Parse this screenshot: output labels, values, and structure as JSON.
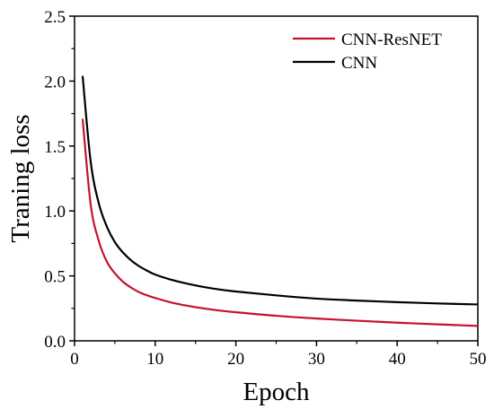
{
  "chart_data": {
    "type": "line",
    "title": "",
    "xlabel": "Epoch",
    "ylabel": "Traning loss",
    "xlim": [
      0,
      50
    ],
    "ylim": [
      0,
      2.5
    ],
    "xticks": [
      0,
      10,
      20,
      30,
      40,
      50
    ],
    "yticks": [
      0.0,
      0.5,
      1.0,
      1.5,
      2.0,
      2.5
    ],
    "xtick_labels": [
      "0",
      "10",
      "20",
      "30",
      "40",
      "50"
    ],
    "ytick_labels": [
      "0.0",
      "0.5",
      "1.0",
      "1.5",
      "2.0",
      "2.5"
    ],
    "grid": false,
    "legend_position": "top-right",
    "series": [
      {
        "name": "CNN-ResNET",
        "color": "#c8102e",
        "x": [
          1,
          2,
          3,
          4,
          5,
          6,
          7,
          8,
          9,
          10,
          12,
          14,
          16,
          18,
          20,
          25,
          30,
          35,
          40,
          45,
          50
        ],
        "y": [
          1.71,
          1.05,
          0.77,
          0.61,
          0.52,
          0.455,
          0.41,
          0.375,
          0.35,
          0.33,
          0.295,
          0.27,
          0.25,
          0.233,
          0.22,
          0.193,
          0.172,
          0.155,
          0.14,
          0.127,
          0.115
        ]
      },
      {
        "name": "CNN",
        "color": "#000000",
        "x": [
          1,
          2,
          3,
          4,
          5,
          6,
          7,
          8,
          9,
          10,
          12,
          14,
          16,
          18,
          20,
          25,
          30,
          35,
          40,
          45,
          50
        ],
        "y": [
          2.04,
          1.38,
          1.06,
          0.88,
          0.76,
          0.68,
          0.62,
          0.575,
          0.54,
          0.51,
          0.47,
          0.44,
          0.415,
          0.395,
          0.38,
          0.35,
          0.325,
          0.31,
          0.298,
          0.288,
          0.28
        ]
      }
    ]
  }
}
